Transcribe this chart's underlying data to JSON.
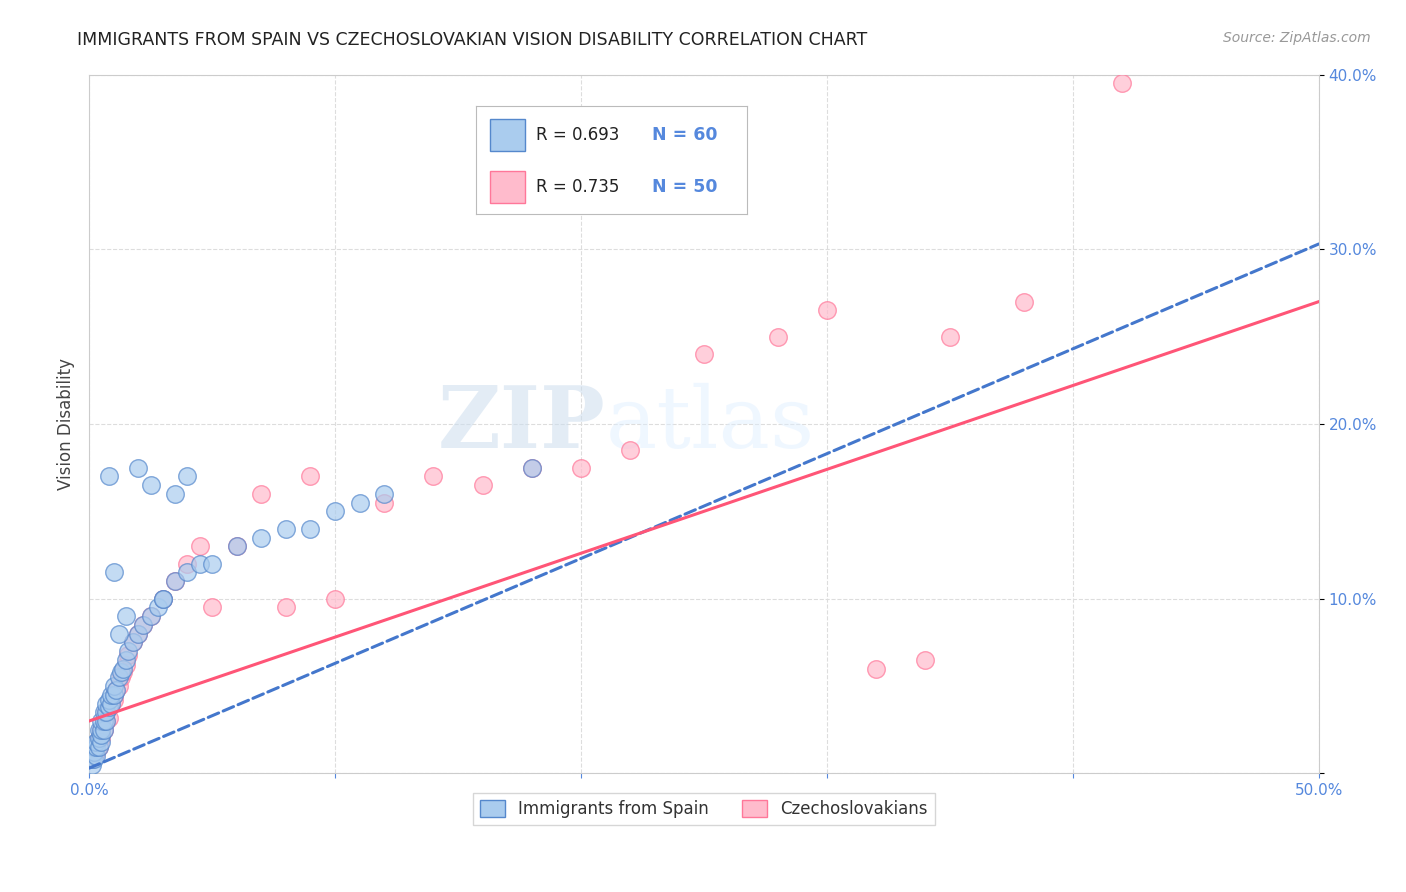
{
  "title": "IMMIGRANTS FROM SPAIN VS CZECHOSLOVAKIAN VISION DISABILITY CORRELATION CHART",
  "source": "Source: ZipAtlas.com",
  "ylabel": "Vision Disability",
  "legend_label1": "Immigrants from Spain",
  "legend_label2": "Czechoslovakians",
  "legend_r1": "R = 0.693",
  "legend_n1": "N = 60",
  "legend_r2": "R = 0.735",
  "legend_n2": "N = 50",
  "color_blue_fill": "#AACCEE",
  "color_pink_fill": "#FFBBCC",
  "color_blue_edge": "#5588CC",
  "color_pink_edge": "#FF7799",
  "color_blue_line": "#4477CC",
  "color_pink_line": "#FF5577",
  "xlim": [
    0.0,
    0.5
  ],
  "ylim": [
    0.0,
    0.4
  ],
  "xticks": [
    0.0,
    0.1,
    0.2,
    0.3,
    0.4,
    0.5
  ],
  "yticks": [
    0.0,
    0.1,
    0.2,
    0.3,
    0.4
  ],
  "xtick_labels": [
    "0.0%",
    "",
    "",
    "",
    "",
    "50.0%"
  ],
  "ytick_labels_right": [
    "",
    "10.0%",
    "20.0%",
    "30.0%",
    "40.0%"
  ],
  "watermark_zip": "ZIP",
  "watermark_atlas": "atlas",
  "blue_scatter_x": [
    0.001,
    0.001,
    0.002,
    0.002,
    0.002,
    0.003,
    0.003,
    0.003,
    0.004,
    0.004,
    0.004,
    0.005,
    0.005,
    0.005,
    0.005,
    0.006,
    0.006,
    0.006,
    0.007,
    0.007,
    0.007,
    0.008,
    0.008,
    0.009,
    0.009,
    0.01,
    0.01,
    0.011,
    0.012,
    0.013,
    0.014,
    0.015,
    0.016,
    0.018,
    0.02,
    0.022,
    0.025,
    0.028,
    0.03,
    0.035,
    0.04,
    0.045,
    0.05,
    0.06,
    0.07,
    0.08,
    0.09,
    0.1,
    0.11,
    0.12,
    0.025,
    0.03,
    0.02,
    0.015,
    0.012,
    0.035,
    0.04,
    0.008,
    0.01,
    0.18
  ],
  "blue_scatter_y": [
    0.005,
    0.008,
    0.008,
    0.012,
    0.015,
    0.01,
    0.015,
    0.018,
    0.015,
    0.02,
    0.025,
    0.018,
    0.022,
    0.025,
    0.03,
    0.025,
    0.03,
    0.035,
    0.03,
    0.035,
    0.04,
    0.038,
    0.042,
    0.04,
    0.045,
    0.045,
    0.05,
    0.048,
    0.055,
    0.058,
    0.06,
    0.065,
    0.07,
    0.075,
    0.08,
    0.085,
    0.09,
    0.095,
    0.1,
    0.11,
    0.115,
    0.12,
    0.12,
    0.13,
    0.135,
    0.14,
    0.14,
    0.15,
    0.155,
    0.16,
    0.165,
    0.1,
    0.175,
    0.09,
    0.08,
    0.16,
    0.17,
    0.17,
    0.115,
    0.175
  ],
  "pink_scatter_x": [
    0.001,
    0.002,
    0.003,
    0.003,
    0.004,
    0.004,
    0.005,
    0.005,
    0.006,
    0.007,
    0.007,
    0.008,
    0.008,
    0.009,
    0.01,
    0.01,
    0.011,
    0.012,
    0.013,
    0.014,
    0.015,
    0.016,
    0.018,
    0.02,
    0.022,
    0.025,
    0.03,
    0.035,
    0.04,
    0.045,
    0.05,
    0.06,
    0.07,
    0.08,
    0.09,
    0.1,
    0.12,
    0.14,
    0.16,
    0.18,
    0.2,
    0.22,
    0.25,
    0.28,
    0.3,
    0.34,
    0.35,
    0.38,
    0.42,
    0.32
  ],
  "pink_scatter_y": [
    0.008,
    0.01,
    0.012,
    0.015,
    0.015,
    0.02,
    0.02,
    0.025,
    0.025,
    0.03,
    0.035,
    0.032,
    0.038,
    0.04,
    0.042,
    0.045,
    0.048,
    0.05,
    0.055,
    0.058,
    0.062,
    0.068,
    0.075,
    0.08,
    0.085,
    0.09,
    0.1,
    0.11,
    0.12,
    0.13,
    0.095,
    0.13,
    0.16,
    0.095,
    0.17,
    0.1,
    0.155,
    0.17,
    0.165,
    0.175,
    0.175,
    0.185,
    0.24,
    0.25,
    0.265,
    0.065,
    0.25,
    0.27,
    0.395,
    0.06
  ],
  "blue_line_x": [
    0.0,
    0.5
  ],
  "blue_line_y": [
    0.003,
    0.303
  ],
  "pink_line_x": [
    0.0,
    0.5
  ],
  "pink_line_y": [
    0.03,
    0.27
  ],
  "background_color": "#FFFFFF",
  "grid_color": "#DDDDDD",
  "tick_color": "#5588DD",
  "title_color": "#222222",
  "source_color": "#999999"
}
